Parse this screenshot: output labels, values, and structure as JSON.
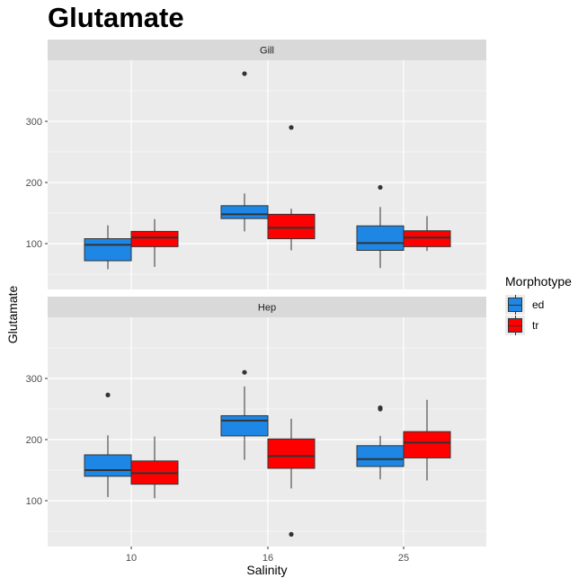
{
  "chart_data": {
    "type": "boxplot",
    "title": "Glutamate",
    "xlabel": "Salinity",
    "ylabel": "Glutamate",
    "categories": [
      "10",
      "16",
      "25"
    ],
    "y_ticks": [
      100,
      200,
      300
    ],
    "legend": {
      "title": "Morphotype",
      "position": "right",
      "entries": [
        {
          "label": "ed",
          "color": "#1e87e5"
        },
        {
          "label": "tr",
          "color": "#ff0000"
        }
      ]
    },
    "facets": [
      {
        "label": "Gill",
        "ylim": [
          25,
          400
        ],
        "boxes": [
          {
            "category": "10",
            "group": "ed",
            "min": 58,
            "q1": 72,
            "median": 98,
            "q3": 108,
            "max": 130,
            "outliers": []
          },
          {
            "category": "10",
            "group": "tr",
            "min": 62,
            "q1": 95,
            "median": 110,
            "q3": 120,
            "max": 140,
            "outliers": []
          },
          {
            "category": "16",
            "group": "ed",
            "min": 120,
            "q1": 141,
            "median": 148,
            "q3": 162,
            "max": 182,
            "outliers": [
              378
            ]
          },
          {
            "category": "16",
            "group": "tr",
            "min": 89,
            "q1": 108,
            "median": 126,
            "q3": 148,
            "max": 157,
            "outliers": [
              290
            ]
          },
          {
            "category": "25",
            "group": "ed",
            "min": 60,
            "q1": 89,
            "median": 101,
            "q3": 129,
            "max": 160,
            "outliers": [
              192
            ]
          },
          {
            "category": "25",
            "group": "tr",
            "min": 88,
            "q1": 95,
            "median": 110,
            "q3": 121,
            "max": 145,
            "outliers": []
          }
        ]
      },
      {
        "label": "Hep",
        "ylim": [
          25,
          400
        ],
        "boxes": [
          {
            "category": "10",
            "group": "ed",
            "min": 106,
            "q1": 140,
            "median": 150,
            "q3": 175,
            "max": 207,
            "outliers": [
              273
            ]
          },
          {
            "category": "10",
            "group": "tr",
            "min": 104,
            "q1": 127,
            "median": 145,
            "q3": 165,
            "max": 205,
            "outliers": []
          },
          {
            "category": "16",
            "group": "ed",
            "min": 167,
            "q1": 206,
            "median": 231,
            "q3": 239,
            "max": 287,
            "outliers": [
              310
            ]
          },
          {
            "category": "16",
            "group": "tr",
            "min": 120,
            "q1": 153,
            "median": 173,
            "q3": 201,
            "max": 234,
            "outliers": [
              45
            ]
          },
          {
            "category": "25",
            "group": "ed",
            "min": 135,
            "q1": 156,
            "median": 168,
            "q3": 190,
            "max": 206,
            "outliers": [
              250,
              252
            ]
          },
          {
            "category": "25",
            "group": "tr",
            "min": 133,
            "q1": 170,
            "median": 195,
            "q3": 213,
            "max": 265,
            "outliers": []
          }
        ]
      }
    ]
  }
}
